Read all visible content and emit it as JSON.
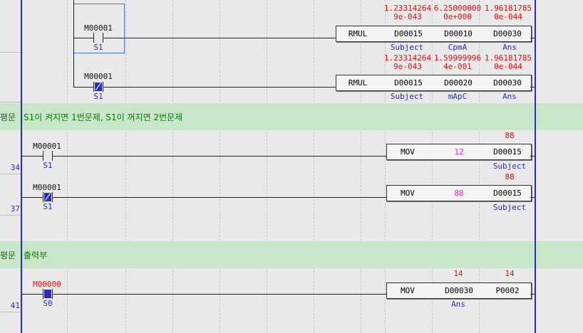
{
  "rungs": {
    "r1": {
      "contact": "M00001",
      "contact_alias": "S1",
      "instr": "RMUL",
      "op1": "D00015",
      "op2": "D00010",
      "op3": "D00030",
      "val1": "1.23314264\n9e-043",
      "val2": "6.25000000\n0e+000",
      "val3": "1.96181785\n0e-044",
      "alias1": "Subject",
      "alias2": "CpmA",
      "alias3": "Ans"
    },
    "r2": {
      "contact": "M00001",
      "contact_alias": "S1",
      "instr": "RMUL",
      "op1": "D00015",
      "op2": "D00020",
      "op3": "D00030",
      "val1": "1.23314264\n9e-043",
      "val2": "1.59999996\n4e-001",
      "val3": "1.96181785\n0e-044",
      "alias1": "Subject",
      "alias2": "mApC",
      "alias3": "Ans"
    },
    "comment1": {
      "label": "평문",
      "text": "S1이 켜지면 1번문제, S1이 꺼지면 2번문제"
    },
    "r34": {
      "step": "34",
      "contact": "M00001",
      "contact_alias": "S1",
      "instr": "MOV",
      "src": "12",
      "dst": "D00015",
      "dst_val": "88",
      "dst_alias": "Subject"
    },
    "r37": {
      "step": "37",
      "contact": "M00001",
      "contact_alias": "S1",
      "instr": "MOV",
      "src": "88",
      "dst": "D00015",
      "dst_val": "88",
      "dst_alias": "Subject"
    },
    "comment2": {
      "label": "평문",
      "text": "출력부"
    },
    "r41": {
      "step": "41",
      "contact": "M00000",
      "contact_alias": "S0",
      "instr": "MOV",
      "src": "D00030",
      "dst": "P0002",
      "src_val": "14",
      "dst_val": "14",
      "src_alias": "Ans"
    }
  },
  "colors": {
    "rail": "#2a2ac8",
    "comment_bg": "#c8e6c8",
    "value": "#e01010",
    "alias": "#2a2ac8",
    "constant": "#e020e0"
  }
}
